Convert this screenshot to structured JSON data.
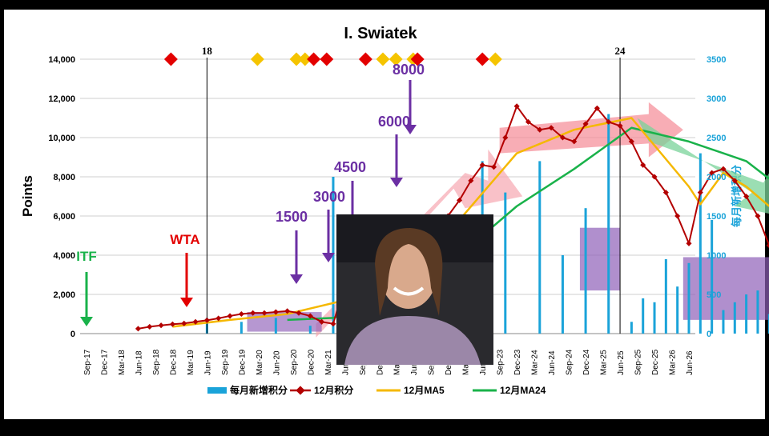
{
  "chart_data": {
    "type": "line",
    "title": "I. Swiatek",
    "ylabel": "Points",
    "y2label": "每月新增积分",
    "ylim": [
      0,
      14000
    ],
    "y2lim": [
      0,
      3500
    ],
    "yticks": [
      "14,000",
      "12,000",
      "10,000",
      "8,000",
      "6,000",
      "4,000",
      "2,000",
      "0"
    ],
    "y2ticks": [
      "3500",
      "3000",
      "2500",
      "2000",
      "1500",
      "1000",
      "500",
      "0"
    ],
    "xticks": [
      "Sep-17",
      "Dec-17",
      "Mar-18",
      "Jun-18",
      "Sep-18",
      "Dec-18",
      "Mar-19",
      "Jun-19",
      "Sep-19",
      "Dec-19",
      "Mar-20",
      "Jun-20",
      "Sep-20",
      "Dec-20",
      "Mar-21",
      "Jun-21",
      "Sep-21",
      "Dec-21",
      "Mar-22",
      "Jun-22",
      "Sep-22",
      "Dec-22",
      "Mar-23",
      "Jun-23",
      "Sep-23",
      "Dec-23",
      "Mar-24",
      "Jun-24",
      "Sep-24",
      "Dec-24",
      "Mar-25",
      "Jun-25",
      "Sep-25",
      "Dec-25",
      "Mar-26",
      "Jun-26"
    ],
    "legend": [
      "每月新增积分",
      "12月积分",
      "12月MA5",
      "12月MA24"
    ],
    "legend_position": "bottom",
    "vlines": [
      {
        "label": "18",
        "month": 21
      },
      {
        "label": "24",
        "month": 93
      }
    ],
    "points_series": [
      [
        9,
        250
      ],
      [
        11,
        350
      ],
      [
        13,
        420
      ],
      [
        15,
        480
      ],
      [
        17,
        520
      ],
      [
        19,
        600
      ],
      [
        21,
        680
      ],
      [
        23,
        780
      ],
      [
        25,
        900
      ],
      [
        27,
        1000
      ],
      [
        29,
        1050
      ],
      [
        31,
        1050
      ],
      [
        33,
        1100
      ],
      [
        35,
        1150
      ],
      [
        37,
        1050
      ],
      [
        39,
        900
      ],
      [
        41,
        600
      ],
      [
        43,
        500
      ],
      [
        45,
        2500
      ],
      [
        47,
        2500
      ],
      [
        49,
        2400
      ],
      [
        51,
        2800
      ],
      [
        53,
        3100
      ],
      [
        55,
        3200
      ],
      [
        57,
        3800
      ],
      [
        59,
        4800
      ],
      [
        61,
        5500
      ],
      [
        63,
        6000
      ],
      [
        65,
        6800
      ],
      [
        67,
        7800
      ],
      [
        69,
        8600
      ],
      [
        71,
        8500
      ],
      [
        73,
        10000
      ],
      [
        75,
        11600
      ],
      [
        77,
        10800
      ],
      [
        79,
        10400
      ],
      [
        81,
        10500
      ],
      [
        83,
        10000
      ],
      [
        85,
        9800
      ],
      [
        87,
        10700
      ],
      [
        89,
        11500
      ],
      [
        91,
        10800
      ],
      [
        93,
        10600
      ],
      [
        95,
        9800
      ],
      [
        97,
        8600
      ],
      [
        99,
        8000
      ],
      [
        101,
        7200
      ],
      [
        103,
        6000
      ],
      [
        105,
        4600
      ],
      [
        107,
        7200
      ],
      [
        109,
        8200
      ],
      [
        111,
        8400
      ],
      [
        113,
        7800
      ],
      [
        115,
        7000
      ],
      [
        117,
        6000
      ],
      [
        119,
        4500
      ]
    ],
    "ma5_series": [
      [
        15,
        350
      ],
      [
        25,
        700
      ],
      [
        35,
        1000
      ],
      [
        45,
        1700
      ],
      [
        55,
        3000
      ],
      [
        65,
        5800
      ],
      [
        75,
        9200
      ],
      [
        85,
        10400
      ],
      [
        95,
        11000
      ],
      [
        105,
        7500
      ],
      [
        107,
        6600
      ],
      [
        111,
        8200
      ],
      [
        115,
        7500
      ],
      [
        119,
        6500
      ]
    ],
    "ma24_series": [
      [
        35,
        700
      ],
      [
        43,
        800
      ],
      [
        55,
        1800
      ],
      [
        65,
        4000
      ],
      [
        75,
        6500
      ],
      [
        85,
        8400
      ],
      [
        95,
        10500
      ],
      [
        105,
        9800
      ],
      [
        111,
        9200
      ],
      [
        115,
        8800
      ],
      [
        119,
        7900
      ]
    ],
    "monthly_bars": [
      [
        21,
        200
      ],
      [
        27,
        150
      ],
      [
        33,
        200
      ],
      [
        39,
        100
      ],
      [
        43,
        2000
      ],
      [
        51,
        200
      ],
      [
        57,
        1300
      ],
      [
        63,
        600
      ],
      [
        69,
        2200
      ],
      [
        73,
        1800
      ],
      [
        79,
        2200
      ],
      [
        83,
        1000
      ],
      [
        87,
        1600
      ],
      [
        91,
        2800
      ],
      [
        95,
        150
      ],
      [
        97,
        450
      ],
      [
        99,
        400
      ],
      [
        101,
        950
      ],
      [
        103,
        600
      ],
      [
        105,
        900
      ],
      [
        107,
        2300
      ],
      [
        109,
        1450
      ],
      [
        111,
        300
      ],
      [
        113,
        400
      ],
      [
        115,
        500
      ],
      [
        117,
        550
      ],
      [
        119,
        250
      ]
    ],
    "annotations": {
      "itf": "ITF",
      "wta": "WTA",
      "t1500": "1500",
      "t3000": "3000",
      "t4500": "4500",
      "t6000": "6000",
      "t8000": "8000"
    }
  }
}
